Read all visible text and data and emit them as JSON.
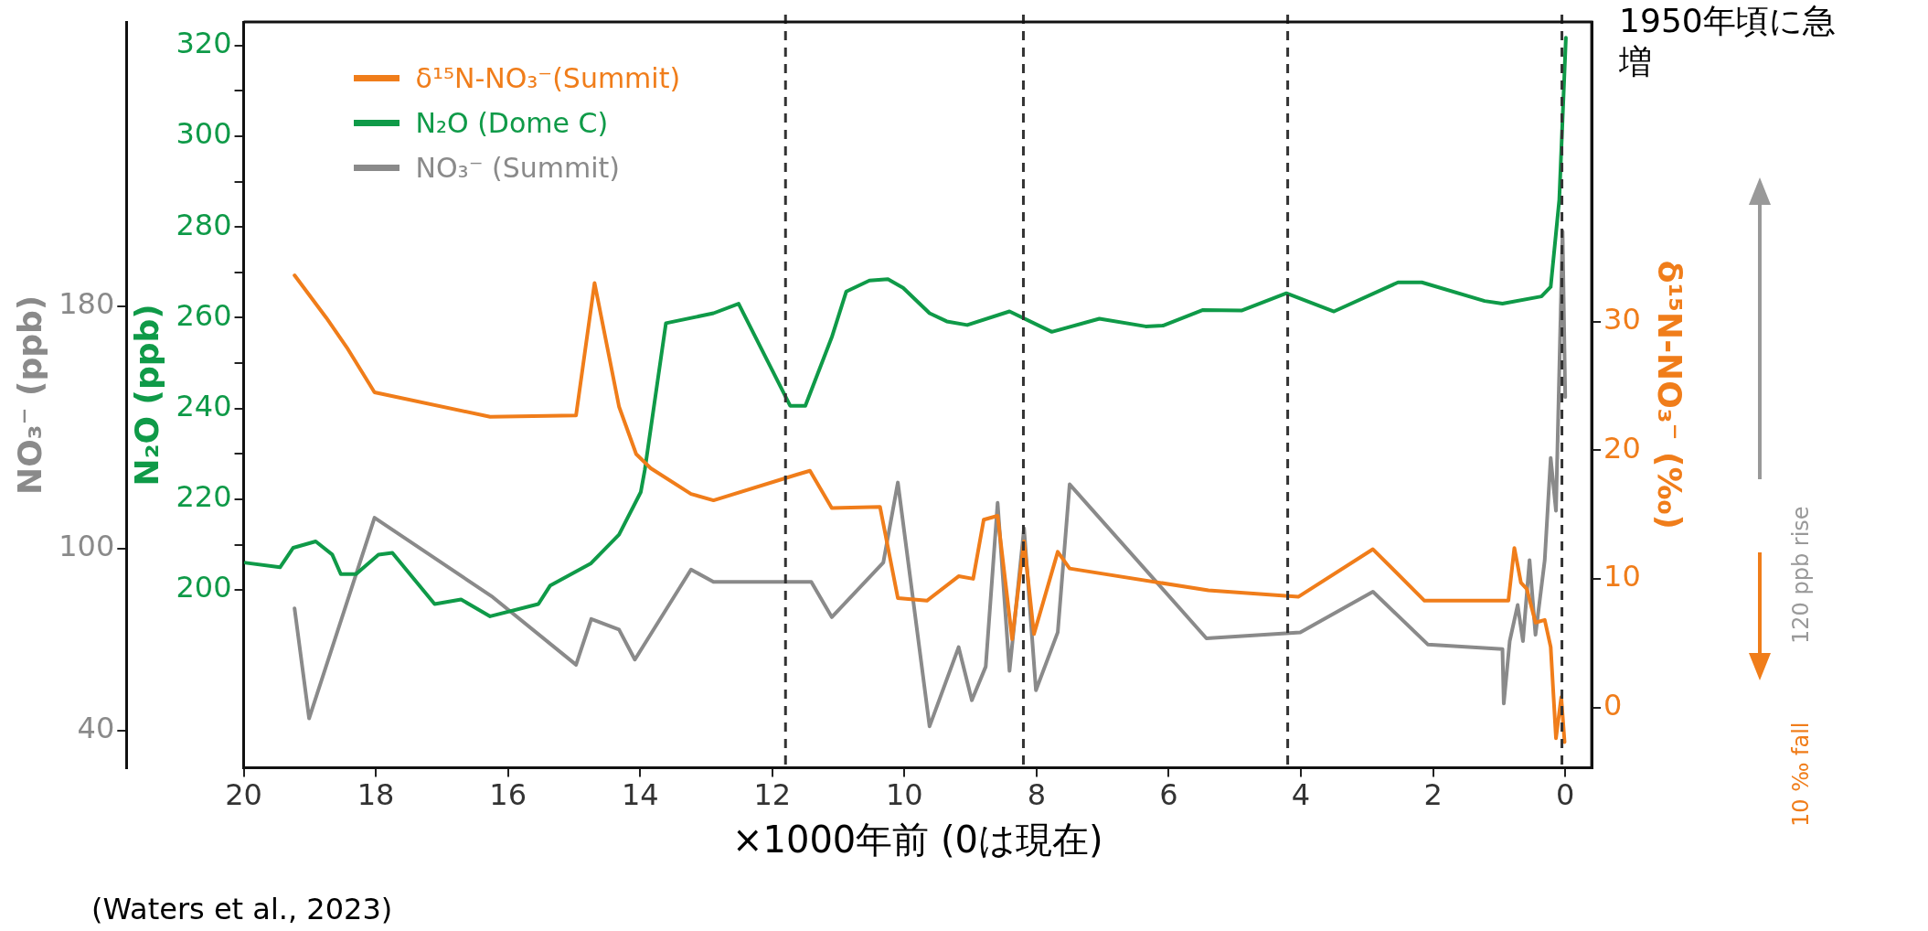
{
  "chart_data": {
    "type": "line",
    "xlabel": "×1000年前 (0は現在)",
    "ylabel": "N₂O (ppb)",
    "y2label": "NO₃⁻ (ppb)",
    "y3label": "δ¹⁵N-NO₃⁻ (‰)",
    "xlim": [
      20,
      -0.4
    ],
    "xticks": [
      20,
      18,
      16,
      14,
      12,
      10,
      8,
      6,
      4,
      2,
      0
    ],
    "ylim": [
      160.8,
      325.2
    ],
    "yticks": [
      200,
      {
        "value": 210,
        "label": null
      },
      220,
      {
        "value": 230,
        "label": null
      },
      240,
      {
        "value": 250,
        "label": null
      },
      260,
      {
        "value": 270,
        "label": null
      },
      280,
      {
        "value": 290,
        "label": null
      },
      300,
      {
        "value": 310,
        "label": null
      },
      320
    ],
    "y2lim": [
      27.7,
      273.7
    ],
    "y2ticks": [
      40,
      100,
      180
    ],
    "y3lim": [
      -4.7,
      53.3
    ],
    "y3ticks": [
      0,
      10,
      20,
      30
    ],
    "legend": "top left",
    "grid": false,
    "marker": "none",
    "line_style": "solid",
    "series": [
      {
        "name": "δ¹⁵N-NO₃⁻(Summit)",
        "color": "#f07d1a",
        "axis": "y3",
        "x": [
          19.23,
          18.75,
          18.44,
          18.02,
          16.27,
          14.97,
          14.69,
          14.32,
          14.06,
          13.84,
          13.23,
          12.89,
          11.63,
          11.43,
          11.1,
          10.37,
          10.1,
          9.66,
          9.18,
          8.96,
          8.8,
          8.59,
          8.37,
          8.19,
          8.04,
          7.68,
          7.5,
          5.4,
          4.04,
          2.91,
          2.13,
          0.86,
          0.77,
          0.67,
          0.58,
          0.45,
          0.31,
          0.22,
          0.14,
          0.06,
          0.01
        ],
        "values": [
          33.6,
          30.3,
          28.0,
          24.5,
          22.6,
          22.7,
          33.0,
          23.4,
          19.7,
          18.6,
          16.6,
          16.1,
          18.1,
          18.4,
          15.5,
          15.6,
          8.5,
          8.3,
          10.2,
          10.0,
          14.6,
          14.9,
          5.3,
          12.9,
          5.7,
          12.1,
          10.8,
          9.1,
          8.6,
          12.3,
          8.3,
          8.3,
          12.4,
          9.7,
          9.2,
          6.6,
          6.8,
          4.7,
          -2.4,
          0.8,
          -2.7
        ]
      },
      {
        "name": "N₂O (Dome C)",
        "color": "#0f9a48",
        "x": [
          19.97,
          19.45,
          19.25,
          18.91,
          18.66,
          18.53,
          18.3,
          17.96,
          17.75,
          17.11,
          16.71,
          16.27,
          15.54,
          15.36,
          14.75,
          14.32,
          13.99,
          13.93,
          13.61,
          12.89,
          12.51,
          11.73,
          11.5,
          11.1,
          10.88,
          10.53,
          10.25,
          10.02,
          9.62,
          9.36,
          9.05,
          8.41,
          7.77,
          7.05,
          6.35,
          6.08,
          5.49,
          4.9,
          4.22,
          3.5,
          2.53,
          2.17,
          1.22,
          0.95,
          0.36,
          0.22,
          0.09,
          -0.01
        ],
        "values": [
          206.0,
          205.0,
          209.3,
          210.7,
          207.8,
          203.5,
          203.5,
          207.8,
          208.2,
          196.9,
          197.9,
          194.2,
          196.9,
          201.0,
          205.8,
          212.2,
          221.6,
          226.4,
          258.8,
          261.0,
          263.1,
          240.6,
          240.6,
          255.7,
          265.8,
          268.2,
          268.5,
          266.6,
          261.0,
          259.2,
          258.4,
          261.4,
          256.9,
          259.8,
          258.1,
          258.3,
          261.7,
          261.6,
          265.4,
          261.4,
          267.8,
          267.8,
          263.7,
          263.1,
          264.7,
          266.8,
          286.0,
          321.7
        ]
      },
      {
        "name": "NO₃⁻ (Summit)",
        "color": "#8a8a8a",
        "axis": "y2",
        "x": [
          19.23,
          19.01,
          18.02,
          16.23,
          14.97,
          14.74,
          14.32,
          14.08,
          13.23,
          12.89,
          11.41,
          11.1,
          10.32,
          10.1,
          9.62,
          9.18,
          8.98,
          8.77,
          8.59,
          8.41,
          8.19,
          8.01,
          7.68,
          7.5,
          5.43,
          4.01,
          2.91,
          2.08,
          0.95,
          0.93,
          0.84,
          0.72,
          0.64,
          0.54,
          0.45,
          0.31,
          0.22,
          0.14,
          0.04,
          0.0
        ],
        "values": [
          80.3,
          44.0,
          110.2,
          84.0,
          61.7,
          76.8,
          73.3,
          63.4,
          93.1,
          89.0,
          89.0,
          77.4,
          95.4,
          121.8,
          41.4,
          67.5,
          50.0,
          61.1,
          115.1,
          59.7,
          106.7,
          53.3,
          72.4,
          121.2,
          70.4,
          72.4,
          85.8,
          68.4,
          66.9,
          48.9,
          69.5,
          81.4,
          69.5,
          96.2,
          71.6,
          96.2,
          129.9,
          112.5,
          204.6,
          150.0
        ]
      }
    ],
    "ref_lines": [
      {
        "axis": "x",
        "value": 11.8,
        "color": "#333333",
        "line_style": "dashed"
      },
      {
        "axis": "x",
        "value": 8.2,
        "color": "#333333",
        "line_style": "dashed"
      },
      {
        "axis": "x",
        "value": 4.2,
        "color": "#333333",
        "line_style": "dashed"
      },
      {
        "axis": "x",
        "value": 0.05,
        "color": "#333333",
        "line_style": "dashed"
      }
    ],
    "annotations": [
      "1950年頃に急増",
      "120 ppb rise",
      "10 ‰ fall",
      "(Waters et al., 2023)"
    ]
  }
}
